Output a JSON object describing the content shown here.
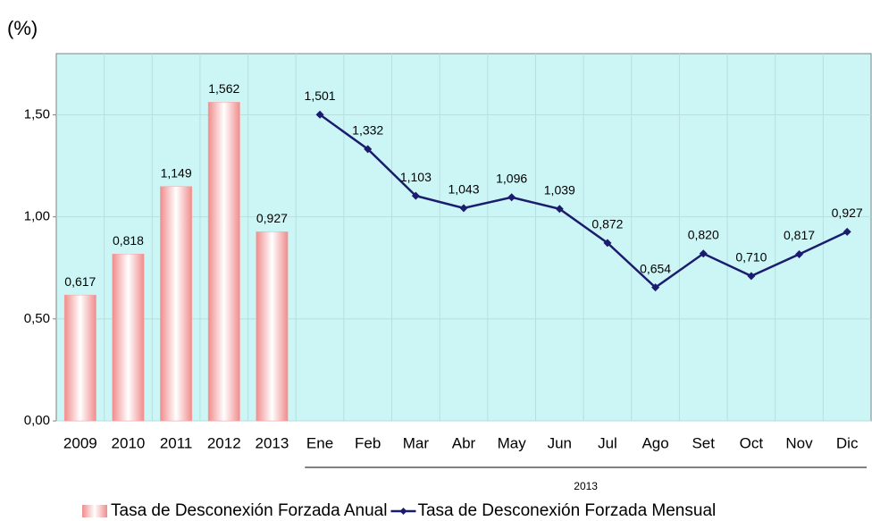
{
  "chart_data": {
    "type": "combo",
    "y_label": "(%)",
    "group_label": "2013",
    "categories": [
      "2009",
      "2010",
      "2011",
      "2012",
      "2013",
      "Ene",
      "Feb",
      "Mar",
      "Abr",
      "May",
      "Jun",
      "Jul",
      "Ago",
      "Set",
      "Oct",
      "Nov",
      "Dic"
    ],
    "series": [
      {
        "name": "Tasa de Desconexión Forzada Anual",
        "type": "bar",
        "color": "#f4a6a6",
        "values": [
          0.617,
          0.818,
          1.149,
          1.562,
          0.927,
          null,
          null,
          null,
          null,
          null,
          null,
          null,
          null,
          null,
          null,
          null,
          null
        ],
        "value_labels": [
          "0,617",
          "0,818",
          "1,149",
          "1,562",
          "0,927",
          null,
          null,
          null,
          null,
          null,
          null,
          null,
          null,
          null,
          null,
          null,
          null
        ]
      },
      {
        "name": "Tasa de Desconexión Forzada Mensual",
        "type": "line",
        "color": "#1c1c6e",
        "values": [
          null,
          null,
          null,
          null,
          null,
          1.501,
          1.332,
          1.103,
          1.043,
          1.096,
          1.039,
          0.872,
          0.654,
          0.82,
          0.71,
          0.817,
          0.927
        ],
        "value_labels": [
          null,
          null,
          null,
          null,
          null,
          "1,501",
          "1,332",
          "1,103",
          "1,043",
          "1,096",
          "1,039",
          "0,872",
          "0,654",
          "0,820",
          "0,710",
          "0,817",
          "0,927"
        ]
      }
    ],
    "ylim": [
      0,
      1.8
    ],
    "yticks": [
      {
        "value": 0,
        "label": "0,00"
      },
      {
        "value": 0.5,
        "label": "0,50"
      },
      {
        "value": 1,
        "label": "1,00"
      },
      {
        "value": 1.5,
        "label": "1,50"
      }
    ],
    "grid": true,
    "background": "#ccf6f6",
    "legend": "bottom"
  }
}
